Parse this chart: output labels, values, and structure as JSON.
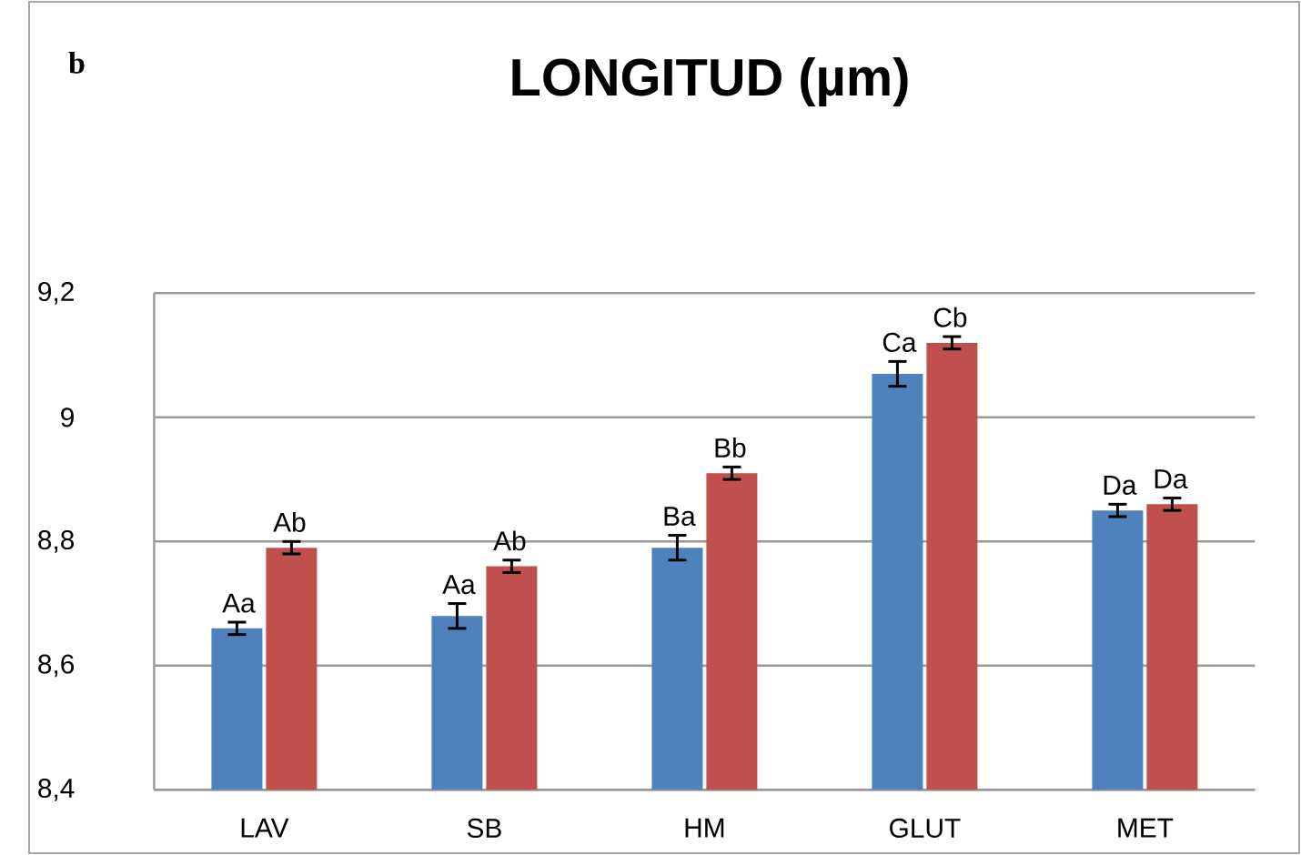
{
  "chart_data": {
    "type": "bar",
    "title": "LONGITUD (µm)",
    "annotations": [
      "b"
    ],
    "categories": [
      "LAV",
      "SB",
      "HM",
      "GLUT",
      "MET"
    ],
    "series": [
      {
        "color": "#4f81bd",
        "values": [
          8.66,
          8.68,
          8.79,
          9.07,
          8.85
        ],
        "errors": [
          0.01,
          0.02,
          0.02,
          0.02,
          0.01
        ],
        "value_labels": [
          "Aa",
          "Aa",
          "Ba",
          "Ca",
          "Da"
        ]
      },
      {
        "color": "#c0504d",
        "values": [
          8.79,
          8.76,
          8.91,
          9.12,
          8.86
        ],
        "errors": [
          0.01,
          0.01,
          0.01,
          0.01,
          0.01
        ],
        "value_labels": [
          "Ab",
          "Ab",
          "Bb",
          "Cb",
          "Da"
        ]
      }
    ],
    "ylim": [
      8.4,
      9.2
    ],
    "yticks": [
      {
        "value": 8.4,
        "label": "8,4"
      },
      {
        "value": 8.6,
        "label": "8,6"
      },
      {
        "value": 8.8,
        "label": "8,8"
      },
      {
        "value": 9,
        "label": "9"
      },
      {
        "value": 9.2,
        "label": "9,2"
      }
    ],
    "grid": "y"
  }
}
